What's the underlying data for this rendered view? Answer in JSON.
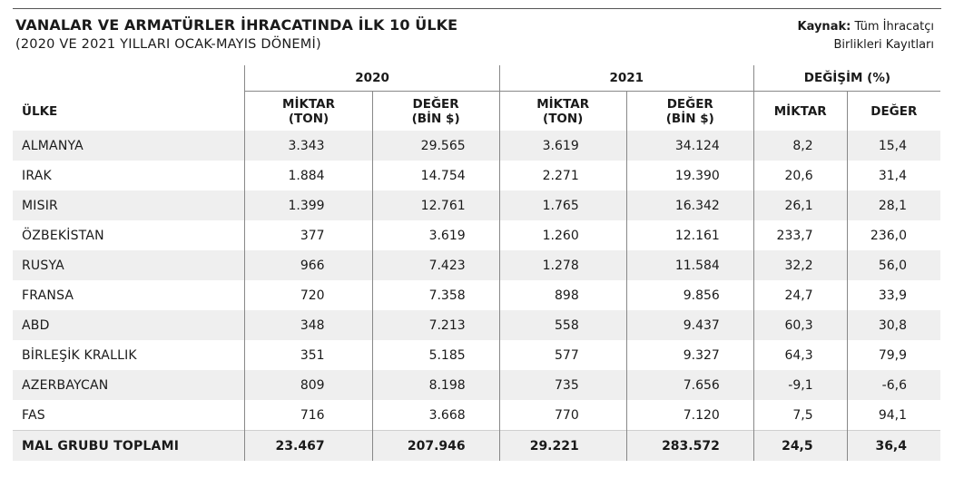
{
  "header": {
    "title": "VANALAR VE ARMATÜRLER İHRACATINDA İLK 10 ÜLKE",
    "subtitle": "(2020 VE 2021 YILLARI OCAK-MAYIS DÖNEMİ)",
    "source_label": "Kaynak:",
    "source_text_1": "Tüm İhracatçı",
    "source_text_2": "Birlikleri Kayıtları"
  },
  "table": {
    "country_header": "ÜLKE",
    "groups": [
      "2020",
      "2021",
      "DEĞİŞİM (%)"
    ],
    "subheaders": {
      "miktar_l1": "MİKTAR",
      "miktar_l2": "(TON)",
      "deger_l1": "DEĞER",
      "deger_l2": "(BİN $)",
      "pct_miktar": "MİKTAR",
      "pct_deger": "DEĞER"
    },
    "rows": [
      {
        "country": "ALMANYA",
        "m2020": "3.343",
        "v2020": "29.565",
        "m2021": "3.619",
        "v2021": "34.124",
        "pm": "8,2",
        "pv": "15,4"
      },
      {
        "country": "IRAK",
        "m2020": "1.884",
        "v2020": "14.754",
        "m2021": "2.271",
        "v2021": "19.390",
        "pm": "20,6",
        "pv": "31,4"
      },
      {
        "country": "MISIR",
        "m2020": "1.399",
        "v2020": "12.761",
        "m2021": "1.765",
        "v2021": "16.342",
        "pm": "26,1",
        "pv": "28,1"
      },
      {
        "country": "ÖZBEKİSTAN",
        "m2020": "377",
        "v2020": "3.619",
        "m2021": "1.260",
        "v2021": "12.161",
        "pm": "233,7",
        "pv": "236,0"
      },
      {
        "country": "RUSYA",
        "m2020": "966",
        "v2020": "7.423",
        "m2021": "1.278",
        "v2021": "11.584",
        "pm": "32,2",
        "pv": "56,0"
      },
      {
        "country": "FRANSA",
        "m2020": "720",
        "v2020": "7.358",
        "m2021": "898",
        "v2021": "9.856",
        "pm": "24,7",
        "pv": "33,9"
      },
      {
        "country": "ABD",
        "m2020": "348",
        "v2020": "7.213",
        "m2021": "558",
        "v2021": "9.437",
        "pm": "60,3",
        "pv": "30,8"
      },
      {
        "country": "BİRLEŞİK KRALLIK",
        "m2020": "351",
        "v2020": "5.185",
        "m2021": "577",
        "v2021": "9.327",
        "pm": "64,3",
        "pv": "79,9"
      },
      {
        "country": "AZERBAYCAN",
        "m2020": "809",
        "v2020": "8.198",
        "m2021": "735",
        "v2021": "7.656",
        "pm": "-9,1",
        "pv": "-6,6"
      },
      {
        "country": "FAS",
        "m2020": "716",
        "v2020": "3.668",
        "m2021": "770",
        "v2021": "7.120",
        "pm": "7,5",
        "pv": "94,1"
      }
    ],
    "total": {
      "country": "MAL GRUBU TOPLAMI",
      "m2020": "23.467",
      "v2020": "207.946",
      "m2021": "29.221",
      "v2021": "283.572",
      "pm": "24,5",
      "pv": "36,4"
    }
  }
}
